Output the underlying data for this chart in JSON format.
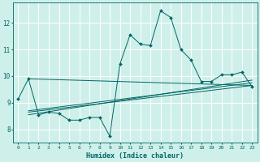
{
  "title": "",
  "xlabel": "Humidex (Indice chaleur)",
  "ylabel": "",
  "bg_color": "#cff0ea",
  "grid_color": "#ffffff",
  "line_color": "#006666",
  "xlim": [
    -0.5,
    23.5
  ],
  "ylim": [
    7.5,
    12.75
  ],
  "yticks": [
    8,
    9,
    10,
    11,
    12
  ],
  "xticks": [
    0,
    1,
    2,
    3,
    4,
    5,
    6,
    7,
    8,
    9,
    10,
    11,
    12,
    13,
    14,
    15,
    16,
    17,
    18,
    19,
    20,
    21,
    22,
    23
  ],
  "series1_x": [
    0,
    1,
    2,
    3,
    4,
    5,
    6,
    7,
    8,
    9,
    10,
    11,
    12,
    13,
    14,
    15,
    16,
    17,
    18,
    19,
    20,
    21,
    22,
    23
  ],
  "series1_y": [
    9.15,
    9.9,
    8.55,
    8.65,
    8.6,
    8.35,
    8.35,
    8.45,
    8.45,
    7.75,
    10.45,
    11.55,
    11.2,
    11.15,
    12.45,
    12.2,
    11.0,
    10.6,
    9.8,
    9.8,
    10.05,
    10.05,
    10.15,
    9.6
  ],
  "series2_x": [
    1,
    23
  ],
  "series2_y": [
    9.9,
    9.65
  ],
  "series3_x": [
    1,
    23
  ],
  "series3_y": [
    8.7,
    9.75
  ],
  "series4_x": [
    1,
    23
  ],
  "series4_y": [
    8.55,
    9.85
  ],
  "series5_x": [
    1,
    23
  ],
  "series5_y": [
    8.65,
    9.65
  ]
}
